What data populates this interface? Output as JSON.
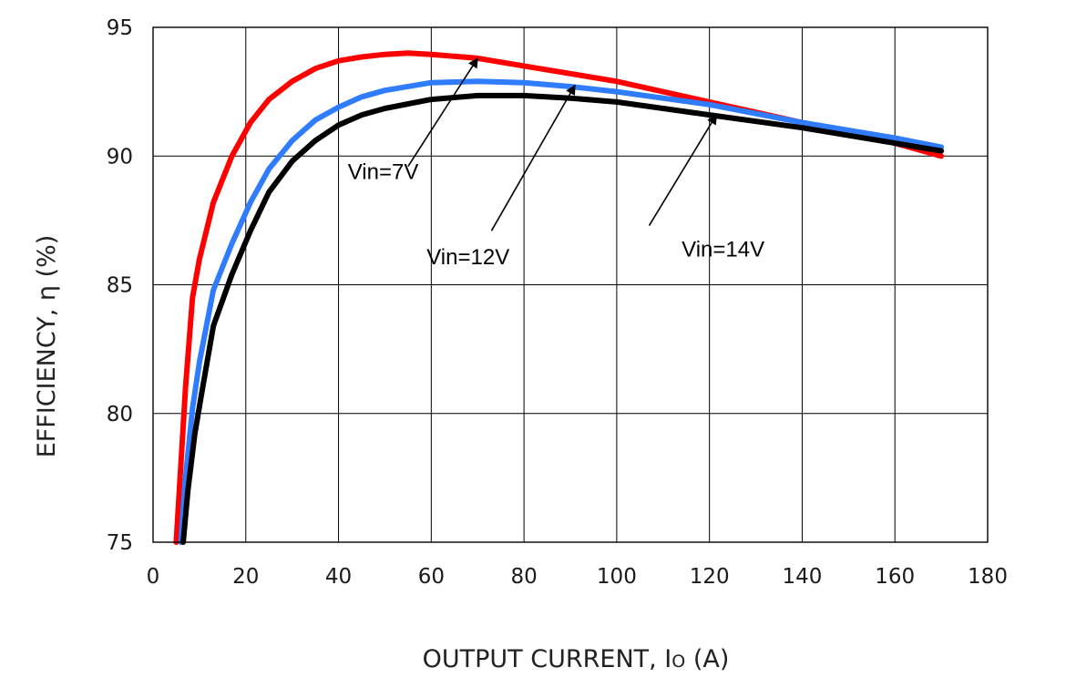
{
  "chart_data": {
    "type": "line",
    "title": "",
    "xlabel": "OUTPUT CURRENT, I",
    "xlabel_subscript": "O",
    "xlabel_unit": " (A)",
    "ylabel": "EFFICIENCY, η  (%)",
    "xlim": [
      0,
      180
    ],
    "ylim": [
      75,
      95
    ],
    "xticks": [
      0,
      20,
      40,
      60,
      80,
      100,
      120,
      140,
      160,
      180
    ],
    "yticks": [
      75,
      80,
      85,
      90,
      95
    ],
    "grid": true,
    "legend": "none",
    "series": [
      {
        "name": "Vin=7V",
        "color": "#ff0000",
        "x": [
          5,
          6,
          7,
          8.5,
          10,
          13,
          17,
          21,
          25,
          30,
          35,
          40,
          45,
          50,
          55,
          60,
          70,
          80,
          90,
          100,
          120,
          140,
          160,
          170
        ],
        "y": [
          75,
          78,
          81,
          84.5,
          86,
          88.2,
          90,
          91.3,
          92.2,
          92.9,
          93.4,
          93.7,
          93.85,
          93.95,
          94,
          93.95,
          93.8,
          93.5,
          93.2,
          92.9,
          92.1,
          91.3,
          90.5,
          90
        ]
      },
      {
        "name": "Vin=12V",
        "color": "#2f7cff",
        "x": [
          6,
          7,
          8.5,
          10,
          13,
          17,
          21,
          25,
          30,
          35,
          40,
          45,
          50,
          60,
          70,
          80,
          90,
          100,
          120,
          140,
          160,
          170
        ],
        "y": [
          75,
          77.5,
          80.2,
          82,
          84.8,
          86.6,
          88.2,
          89.5,
          90.6,
          91.4,
          91.9,
          92.3,
          92.55,
          92.85,
          92.9,
          92.85,
          92.7,
          92.5,
          92,
          91.3,
          90.7,
          90.35
        ]
      },
      {
        "name": "Vin=14V",
        "color": "#000000",
        "x": [
          6.5,
          7.5,
          9,
          10.5,
          13,
          17,
          21,
          25,
          30,
          35,
          40,
          45,
          50,
          60,
          70,
          80,
          90,
          100,
          120,
          140,
          160,
          170
        ],
        "y": [
          75,
          77,
          79.2,
          80.8,
          83.4,
          85.4,
          87.1,
          88.6,
          89.8,
          90.6,
          91.2,
          91.6,
          91.85,
          92.2,
          92.35,
          92.35,
          92.25,
          92.1,
          91.6,
          91.1,
          90.5,
          90.2
        ]
      }
    ],
    "annotations": [
      {
        "text": "Vin=7V",
        "series": "Vin=7V",
        "label_at": [
          42,
          89.1
        ],
        "tail": [
          55,
          89.6
        ],
        "head": [
          70,
          93.8
        ]
      },
      {
        "text": "Vin=12V",
        "series": "Vin=12V",
        "label_at": [
          59,
          85.8
        ],
        "tail": [
          73,
          87.1
        ],
        "head": [
          91,
          92.75
        ]
      },
      {
        "text": "Vin=14V",
        "series": "Vin=14V",
        "label_at": [
          114,
          86.1
        ],
        "tail": [
          107,
          87.3
        ],
        "head": [
          121.5,
          91.6
        ]
      }
    ]
  }
}
